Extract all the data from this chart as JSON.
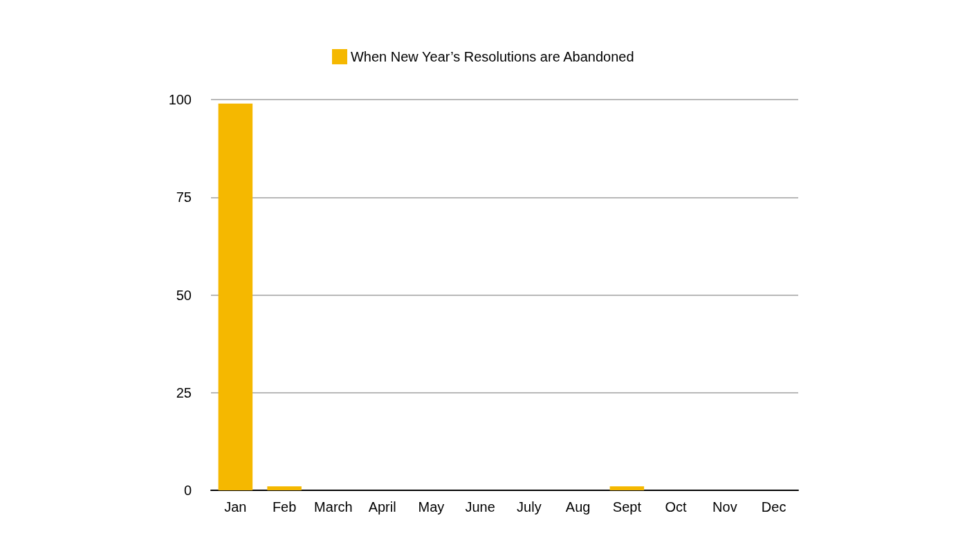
{
  "chart_data": {
    "type": "bar",
    "categories": [
      "Jan",
      "Feb",
      "March",
      "April",
      "May",
      "June",
      "July",
      "Aug",
      "Sept",
      "Oct",
      "Nov",
      "Dec"
    ],
    "series": [
      {
        "name": "When New Year’s Resolutions are Abandoned",
        "color": "#f5b800",
        "values": [
          99,
          1,
          0,
          0,
          0,
          0,
          0,
          0,
          1,
          0,
          0,
          0
        ]
      }
    ],
    "ylim": [
      0,
      100
    ],
    "yticks": [
      0,
      25,
      50,
      75,
      100
    ],
    "grid": "y",
    "legend": "top"
  }
}
